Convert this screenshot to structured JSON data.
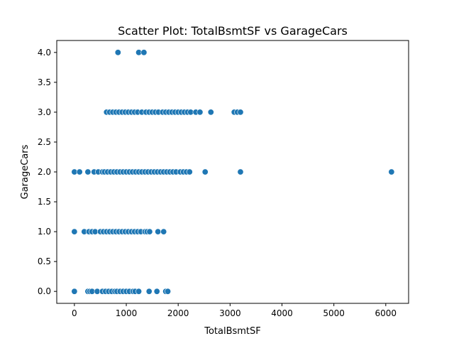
{
  "chart_data": {
    "type": "scatter",
    "title": "Scatter Plot: TotalBsmtSF vs GarageCars",
    "xlabel": "TotalBsmtSF",
    "ylabel": "GarageCars",
    "xlim": [
      -340,
      6440
    ],
    "ylim": [
      -0.2,
      4.2
    ],
    "x_ticks": [
      "0",
      "1000",
      "2000",
      "3000",
      "4000",
      "5000",
      "6000"
    ],
    "y_ticks": [
      "0.0",
      "0.5",
      "1.0",
      "1.5",
      "2.0",
      "2.5",
      "3.0",
      "3.5",
      "4.0"
    ],
    "grid": false,
    "legend": "none",
    "marker_color": "#1f77b4",
    "points": [
      {
        "x": 0,
        "y": 0
      },
      {
        "x": 260,
        "y": 0
      },
      {
        "x": 300,
        "y": 0
      },
      {
        "x": 340,
        "y": 0
      },
      {
        "x": 440,
        "y": 0
      },
      {
        "x": 540,
        "y": 0
      },
      {
        "x": 600,
        "y": 0
      },
      {
        "x": 660,
        "y": 0
      },
      {
        "x": 720,
        "y": 0
      },
      {
        "x": 780,
        "y": 0
      },
      {
        "x": 820,
        "y": 0
      },
      {
        "x": 880,
        "y": 0
      },
      {
        "x": 940,
        "y": 0
      },
      {
        "x": 1000,
        "y": 0
      },
      {
        "x": 1060,
        "y": 0
      },
      {
        "x": 1130,
        "y": 0
      },
      {
        "x": 1170,
        "y": 0
      },
      {
        "x": 1240,
        "y": 0
      },
      {
        "x": 1440,
        "y": 0
      },
      {
        "x": 1590,
        "y": 0
      },
      {
        "x": 1760,
        "y": 0
      },
      {
        "x": 1800,
        "y": 0
      },
      {
        "x": 0,
        "y": 1
      },
      {
        "x": 190,
        "y": 1
      },
      {
        "x": 280,
        "y": 1
      },
      {
        "x": 340,
        "y": 1
      },
      {
        "x": 400,
        "y": 1
      },
      {
        "x": 500,
        "y": 1
      },
      {
        "x": 560,
        "y": 1
      },
      {
        "x": 620,
        "y": 1
      },
      {
        "x": 680,
        "y": 1
      },
      {
        "x": 740,
        "y": 1
      },
      {
        "x": 800,
        "y": 1
      },
      {
        "x": 860,
        "y": 1
      },
      {
        "x": 920,
        "y": 1
      },
      {
        "x": 980,
        "y": 1
      },
      {
        "x": 1040,
        "y": 1
      },
      {
        "x": 1100,
        "y": 1
      },
      {
        "x": 1160,
        "y": 1
      },
      {
        "x": 1220,
        "y": 1
      },
      {
        "x": 1280,
        "y": 1
      },
      {
        "x": 1360,
        "y": 1
      },
      {
        "x": 1400,
        "y": 1
      },
      {
        "x": 1450,
        "y": 1
      },
      {
        "x": 1610,
        "y": 1
      },
      {
        "x": 1720,
        "y": 1
      },
      {
        "x": 0,
        "y": 2
      },
      {
        "x": 100,
        "y": 2
      },
      {
        "x": 260,
        "y": 2
      },
      {
        "x": 380,
        "y": 2
      },
      {
        "x": 460,
        "y": 2
      },
      {
        "x": 540,
        "y": 2
      },
      {
        "x": 580,
        "y": 2
      },
      {
        "x": 640,
        "y": 2
      },
      {
        "x": 700,
        "y": 2
      },
      {
        "x": 760,
        "y": 2
      },
      {
        "x": 820,
        "y": 2
      },
      {
        "x": 880,
        "y": 2
      },
      {
        "x": 940,
        "y": 2
      },
      {
        "x": 1000,
        "y": 2
      },
      {
        "x": 1060,
        "y": 2
      },
      {
        "x": 1120,
        "y": 2
      },
      {
        "x": 1180,
        "y": 2
      },
      {
        "x": 1240,
        "y": 2
      },
      {
        "x": 1300,
        "y": 2
      },
      {
        "x": 1360,
        "y": 2
      },
      {
        "x": 1420,
        "y": 2
      },
      {
        "x": 1480,
        "y": 2
      },
      {
        "x": 1540,
        "y": 2
      },
      {
        "x": 1600,
        "y": 2
      },
      {
        "x": 1660,
        "y": 2
      },
      {
        "x": 1720,
        "y": 2
      },
      {
        "x": 1780,
        "y": 2
      },
      {
        "x": 1840,
        "y": 2
      },
      {
        "x": 1900,
        "y": 2
      },
      {
        "x": 1960,
        "y": 2
      },
      {
        "x": 2040,
        "y": 2
      },
      {
        "x": 2100,
        "y": 2
      },
      {
        "x": 2160,
        "y": 2
      },
      {
        "x": 2220,
        "y": 2
      },
      {
        "x": 2520,
        "y": 2
      },
      {
        "x": 3200,
        "y": 2
      },
      {
        "x": 6110,
        "y": 2
      },
      {
        "x": 620,
        "y": 3
      },
      {
        "x": 680,
        "y": 3
      },
      {
        "x": 740,
        "y": 3
      },
      {
        "x": 800,
        "y": 3
      },
      {
        "x": 860,
        "y": 3
      },
      {
        "x": 920,
        "y": 3
      },
      {
        "x": 980,
        "y": 3
      },
      {
        "x": 1040,
        "y": 3
      },
      {
        "x": 1100,
        "y": 3
      },
      {
        "x": 1160,
        "y": 3
      },
      {
        "x": 1220,
        "y": 3
      },
      {
        "x": 1300,
        "y": 3
      },
      {
        "x": 1380,
        "y": 3
      },
      {
        "x": 1440,
        "y": 3
      },
      {
        "x": 1500,
        "y": 3
      },
      {
        "x": 1560,
        "y": 3
      },
      {
        "x": 1620,
        "y": 3
      },
      {
        "x": 1700,
        "y": 3
      },
      {
        "x": 1760,
        "y": 3
      },
      {
        "x": 1820,
        "y": 3
      },
      {
        "x": 1880,
        "y": 3
      },
      {
        "x": 1940,
        "y": 3
      },
      {
        "x": 2000,
        "y": 3
      },
      {
        "x": 2060,
        "y": 3
      },
      {
        "x": 2120,
        "y": 3
      },
      {
        "x": 2180,
        "y": 3
      },
      {
        "x": 2240,
        "y": 3
      },
      {
        "x": 2340,
        "y": 3
      },
      {
        "x": 2420,
        "y": 3
      },
      {
        "x": 2630,
        "y": 3
      },
      {
        "x": 3080,
        "y": 3
      },
      {
        "x": 3140,
        "y": 3
      },
      {
        "x": 3200,
        "y": 3
      },
      {
        "x": 840,
        "y": 4
      },
      {
        "x": 1240,
        "y": 4
      },
      {
        "x": 1340,
        "y": 4
      }
    ]
  }
}
